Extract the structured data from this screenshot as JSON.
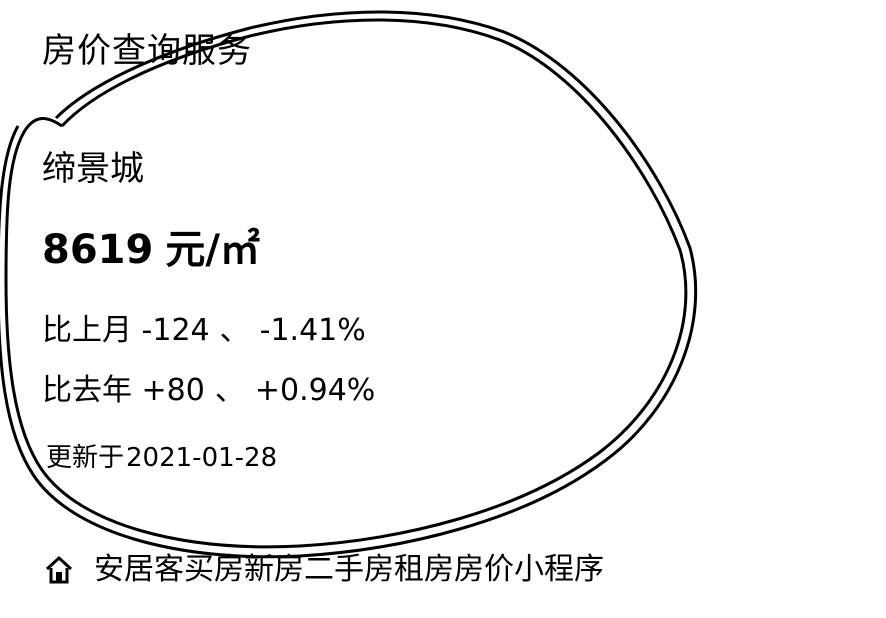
{
  "card": {
    "service_title": "房价查询服务",
    "community_name": "缔景城",
    "price": {
      "value": "8619",
      "unit": "元/㎡"
    },
    "month_change": {
      "label": "比上月",
      "amount": "-124",
      "separator": "、",
      "percent": "-1.41%"
    },
    "year_change": {
      "label": "比去年",
      "amount": "+80",
      "separator": "、",
      "percent": "+0.94%"
    },
    "updated": {
      "label": "更新于",
      "date": "2021-01-28"
    },
    "footer": {
      "icon": "house-icon",
      "text": "安居客买房新房二手房租房房价小程序"
    }
  },
  "colors": {
    "text": "#000000",
    "background": "#ffffff",
    "annotation": "#000000"
  }
}
